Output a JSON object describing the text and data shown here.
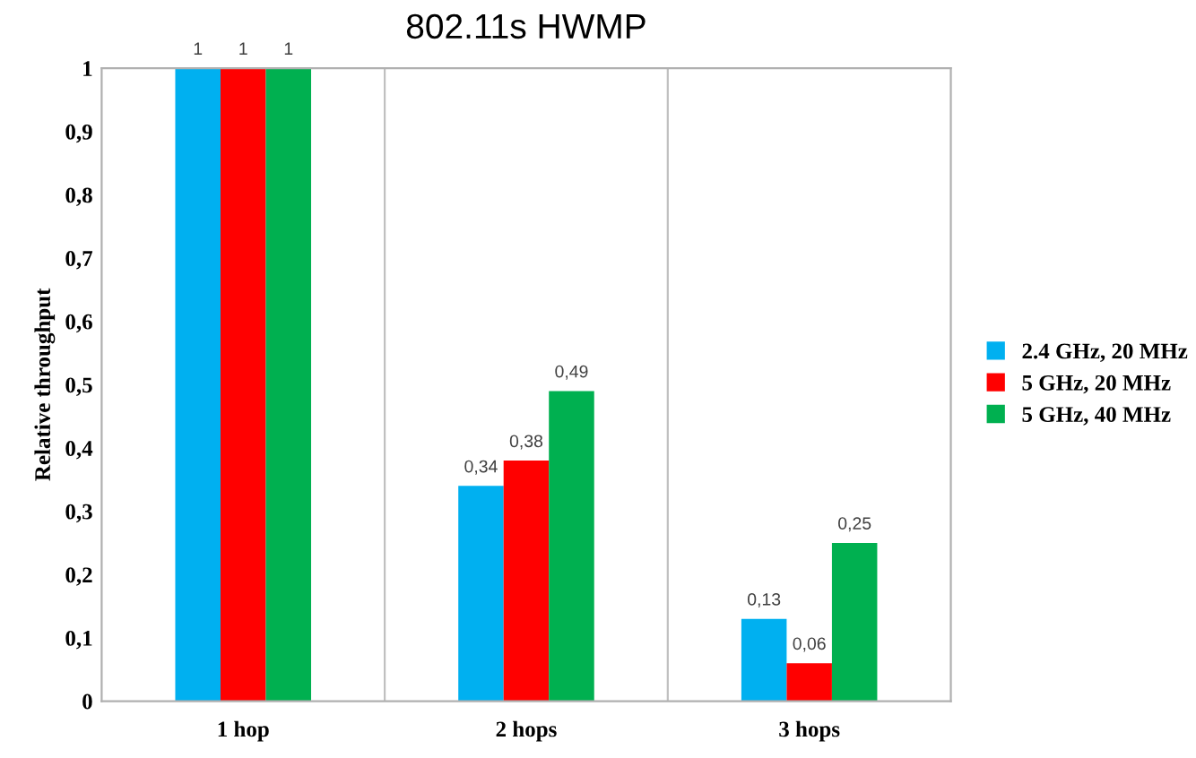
{
  "chart_data": {
    "type": "bar",
    "title": "802.11s HWMP",
    "ylabel": "Relative throughput",
    "categories": [
      "1 hop",
      "2 hops",
      "3 hops"
    ],
    "series": [
      {
        "name": "2.4 GHz, 20 MHz",
        "color": "#00b0f0",
        "values": [
          1,
          0.34,
          0.13
        ],
        "value_labels": [
          "1",
          "0,34",
          "0,13"
        ]
      },
      {
        "name": "5 GHz, 20 MHz",
        "color": "#ff0000",
        "values": [
          1,
          0.38,
          0.06
        ],
        "value_labels": [
          "1",
          "0,38",
          "0,06"
        ]
      },
      {
        "name": "5 GHz, 40 MHz",
        "color": "#00b050",
        "values": [
          1,
          0.49,
          0.25
        ],
        "value_labels": [
          "1",
          "0,49",
          "0,25"
        ]
      }
    ],
    "ylim": [
      0,
      1
    ],
    "yticks": [
      0,
      {
        "value": 0.1,
        "label": "0,1"
      },
      {
        "value": 0.2,
        "label": "0,2"
      },
      {
        "value": 0.3,
        "label": "0,3"
      },
      {
        "value": 0.4,
        "label": "0,4"
      },
      {
        "value": 0.5,
        "label": "0,5"
      },
      {
        "value": 0.6,
        "label": "0,6"
      },
      {
        "value": 0.7,
        "label": "0,7"
      },
      {
        "value": 0.8,
        "label": "0,8"
      },
      {
        "value": 0.9,
        "label": "0,9"
      },
      1
    ],
    "grid": "x",
    "legend": "right"
  }
}
